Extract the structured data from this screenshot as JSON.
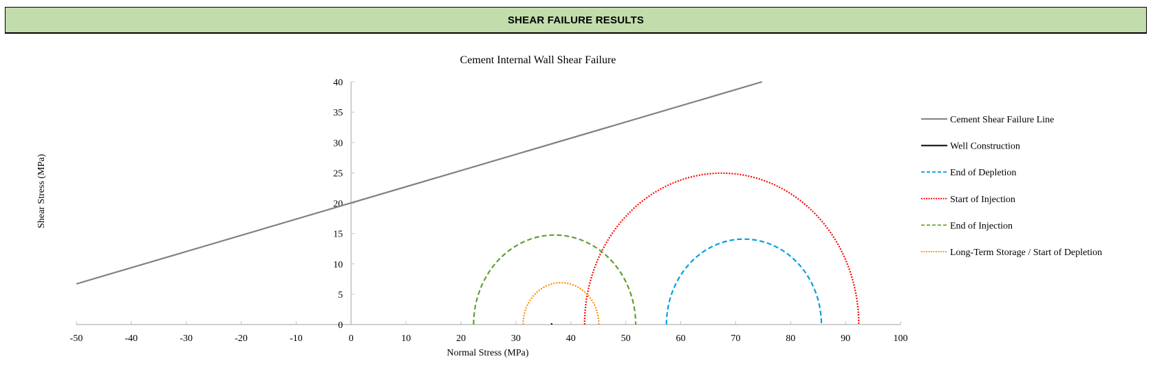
{
  "header": {
    "title": "SHEAR FAILURE RESULTS",
    "background": "#c2dcac"
  },
  "chart_data": {
    "type": "scatter",
    "title": "Cement Internal Wall Shear Failure",
    "xlabel": "Normal Stress (MPa)",
    "ylabel": "Shear Stress (MPa)",
    "xlim": [
      -50,
      100
    ],
    "ylim": [
      0,
      40
    ],
    "xticks": [
      -50,
      -40,
      -30,
      -20,
      -10,
      0,
      10,
      20,
      30,
      40,
      50,
      60,
      70,
      80,
      90,
      100
    ],
    "yticks": [
      0,
      5,
      10,
      15,
      20,
      25,
      30,
      35,
      40
    ],
    "grid": false,
    "legend_position": "right",
    "series": [
      {
        "name": "Cement Shear Failure Line",
        "kind": "line",
        "color": "#808080",
        "style": "solid",
        "x": [
          -50,
          74.8
        ],
        "y": [
          6.7,
          40
        ]
      },
      {
        "name": "Well Construction",
        "kind": "mohr_circle",
        "color": "#000000",
        "style": "solid",
        "center": 36.5,
        "radius": 0.1
      },
      {
        "name": "End of Depletion",
        "kind": "mohr_circle",
        "color": "#00a0e4",
        "style": "dashed",
        "center": 71.5,
        "radius": 14.1
      },
      {
        "name": "Start of Injection",
        "kind": "mohr_circle",
        "color": "#ff0000",
        "style": "dotted",
        "center": 67.45,
        "radius": 24.95
      },
      {
        "name": "End of Injection",
        "kind": "mohr_circle",
        "color": "#5ea02e",
        "style": "dashed",
        "center": 37.05,
        "radius": 14.75
      },
      {
        "name": "Long-Term Storage / Start of Depletion",
        "kind": "mohr_circle",
        "color": "#ff8c00",
        "style": "dotted",
        "center": 38.2,
        "radius": 6.9
      }
    ]
  }
}
